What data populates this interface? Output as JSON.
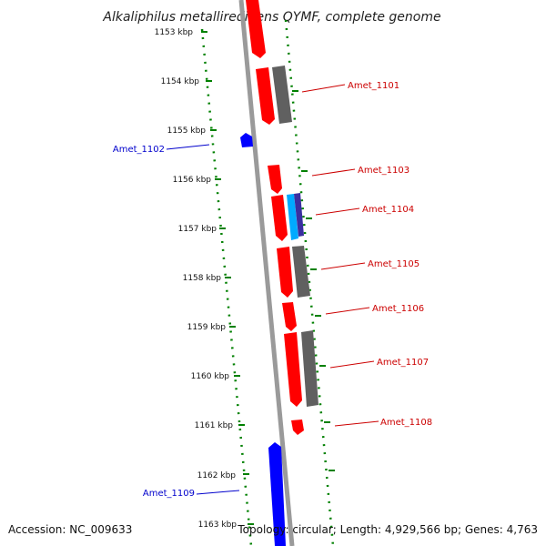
{
  "title": "Alkaliphilus metalliredigens QYMF, complete genome",
  "footer": {
    "accession": "Accession: NC_009633",
    "topology": "Topology: circular; Length: 4,929,566 bp; Genes: 4,763"
  },
  "colors": {
    "forward_gene": "#ff0000",
    "reverse_gene": "#0000ff",
    "other_feature": "#606060",
    "rna_feature": "#00aaff",
    "tick": "#008000",
    "label_forward": "#cc0000",
    "label_reverse": "#0000cc",
    "backbone": "#9a9a9a"
  },
  "kbp_ticks": [
    "1153 kbp",
    "1154 kbp",
    "1155 kbp",
    "1156 kbp",
    "1157 kbp",
    "1158 kbp",
    "1159 kbp",
    "1160 kbp",
    "1161 kbp",
    "1162 kbp",
    "1163 kbp"
  ],
  "gene_labels": [
    {
      "id": "lbl_1101",
      "text": "Amet_1101",
      "strand": "forward"
    },
    {
      "id": "lbl_1102",
      "text": "Amet_1102",
      "strand": "reverse"
    },
    {
      "id": "lbl_1103",
      "text": "Amet_1103",
      "strand": "forward"
    },
    {
      "id": "lbl_1104",
      "text": "Amet_1104",
      "strand": "forward"
    },
    {
      "id": "lbl_1105",
      "text": "Amet_1105",
      "strand": "forward"
    },
    {
      "id": "lbl_1106",
      "text": "Amet_1106",
      "strand": "forward"
    },
    {
      "id": "lbl_1107",
      "text": "Amet_1107",
      "strand": "forward"
    },
    {
      "id": "lbl_1108",
      "text": "Amet_1108",
      "strand": "forward"
    },
    {
      "id": "lbl_1109",
      "text": "Amet_1109",
      "strand": "reverse"
    }
  ]
}
